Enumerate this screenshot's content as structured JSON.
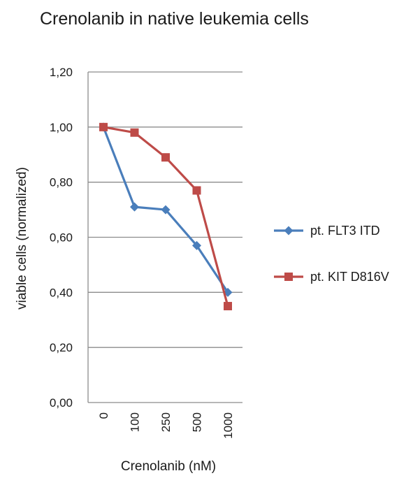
{
  "chart_data": {
    "type": "line",
    "title": "Crenolanib in native leukemia cells",
    "xlabel": "Crenolanib (nM)",
    "ylabel": "viable cells (normalized)",
    "categories": [
      "0",
      "100",
      "250",
      "500",
      "1000"
    ],
    "ylim": [
      0,
      1.2
    ],
    "yticks": [
      "0,00",
      "0,20",
      "0,40",
      "0,60",
      "0,80",
      "1,00",
      "1,20"
    ],
    "ytick_values": [
      0,
      0.2,
      0.4,
      0.6,
      0.8,
      1.0,
      1.2
    ],
    "grid": true,
    "legend_position": "right",
    "series": [
      {
        "name": "pt. FLT3 ITD",
        "values": [
          1.0,
          0.71,
          0.7,
          0.57,
          0.4
        ],
        "color": "#4a7ebb",
        "marker": "diamond"
      },
      {
        "name": "pt. KIT D816V",
        "values": [
          1.0,
          0.98,
          0.89,
          0.77,
          0.35
        ],
        "color": "#be4b48",
        "marker": "square"
      }
    ]
  }
}
